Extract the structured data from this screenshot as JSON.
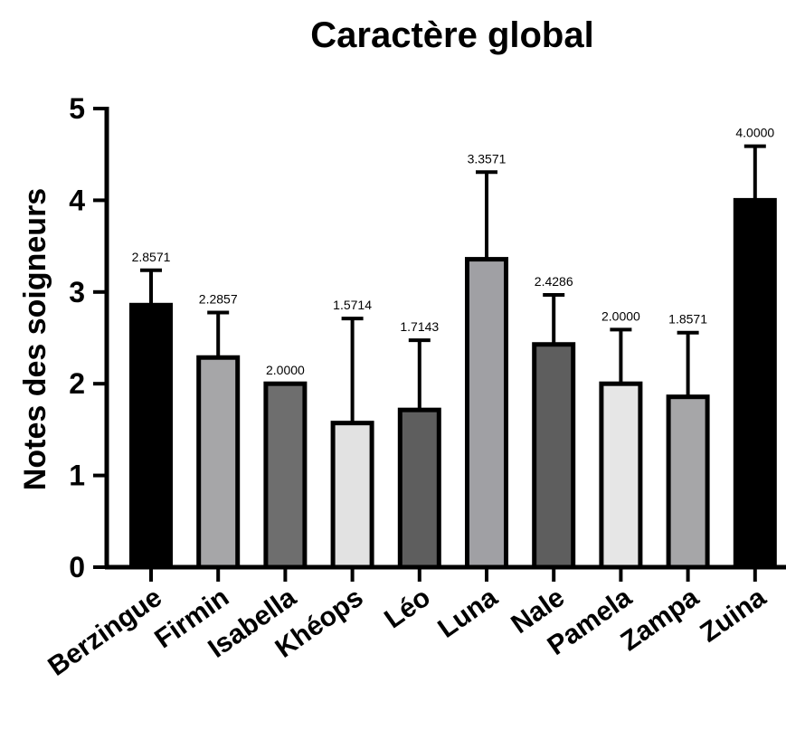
{
  "chart_data": {
    "type": "bar",
    "title": "Caractère global",
    "xlabel": "",
    "ylabel": "Notes des soigneurs",
    "ylim": [
      0,
      5
    ],
    "yticks": [
      "0",
      "1",
      "2",
      "3",
      "4",
      "5"
    ],
    "grid": false,
    "categories": [
      "Berzingue",
      "Firmin",
      "Isabella",
      "Khéops",
      "Léo",
      "Luna",
      "Nale",
      "Pamela",
      "Zampa",
      "Zuina"
    ],
    "values": [
      2.8571,
      2.2857,
      2.0,
      1.5714,
      1.7143,
      3.3571,
      2.4286,
      2.0,
      1.8571,
      4.0
    ],
    "error_upper": [
      0.38,
      0.49,
      0.0,
      1.14,
      0.76,
      0.95,
      0.54,
      0.59,
      0.7,
      0.59
    ],
    "data_labels": [
      "2.8571",
      "2.2857",
      "2.0000",
      "1.5714",
      "1.7143",
      "3.3571",
      "2.4286",
      "2.0000",
      "1.8571",
      "4.0000"
    ],
    "bar_colors": [
      "#000000",
      "#a6a6a8",
      "#6e6e6e",
      "#e2e2e2",
      "#5e5e5e",
      "#a0a0a4",
      "#5e5e5e",
      "#e6e6e6",
      "#a6a6a8",
      "#000000"
    ]
  }
}
